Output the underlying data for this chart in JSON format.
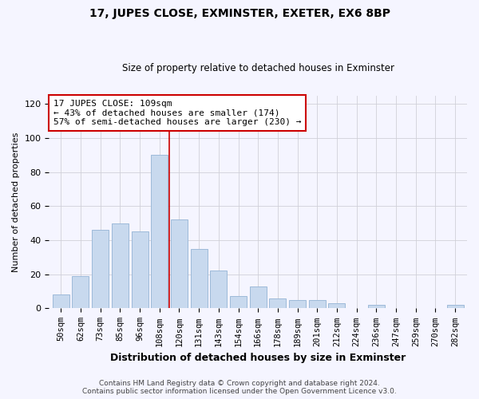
{
  "title": "17, JUPES CLOSE, EXMINSTER, EXETER, EX6 8BP",
  "subtitle": "Size of property relative to detached houses in Exminster",
  "xlabel": "Distribution of detached houses by size in Exminster",
  "ylabel": "Number of detached properties",
  "footer_line1": "Contains HM Land Registry data © Crown copyright and database right 2024.",
  "footer_line2": "Contains public sector information licensed under the Open Government Licence v3.0.",
  "bar_labels": [
    "50sqm",
    "62sqm",
    "73sqm",
    "85sqm",
    "96sqm",
    "108sqm",
    "120sqm",
    "131sqm",
    "143sqm",
    "154sqm",
    "166sqm",
    "178sqm",
    "189sqm",
    "201sqm",
    "212sqm",
    "224sqm",
    "236sqm",
    "247sqm",
    "259sqm",
    "270sqm",
    "282sqm"
  ],
  "bar_values": [
    8,
    19,
    46,
    50,
    45,
    90,
    52,
    35,
    22,
    7,
    13,
    6,
    5,
    5,
    3,
    0,
    2,
    0,
    0,
    0,
    2
  ],
  "bar_color": "#c8d9ee",
  "bar_edge_color": "#9dbad9",
  "vline_x": 5.5,
  "vline_color": "#cc0000",
  "annotation_line1": "17 JUPES CLOSE: 109sqm",
  "annotation_line2": "← 43% of detached houses are smaller (174)",
  "annotation_line3": "57% of semi-detached houses are larger (230) →",
  "annotation_box_color": "white",
  "annotation_box_edge": "#cc0000",
  "ylim": [
    0,
    125
  ],
  "yticks": [
    0,
    20,
    40,
    60,
    80,
    100,
    120
  ],
  "bg_color": "#f5f5ff",
  "grid_color": "#d0d0d8",
  "title_fontsize": 10,
  "subtitle_fontsize": 8.5,
  "xlabel_fontsize": 9,
  "ylabel_fontsize": 8,
  "tick_fontsize": 8,
  "xtick_fontsize": 7.5,
  "footer_fontsize": 6.5
}
